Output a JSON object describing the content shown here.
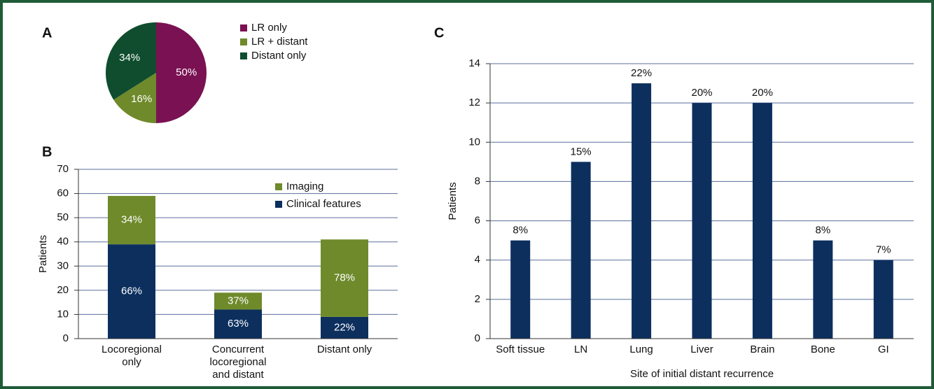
{
  "chart_data": [
    {
      "type": "pie",
      "panel": "A",
      "categories": [
        "LR only",
        "LR + distant",
        "Distant only"
      ],
      "values": [
        50,
        16,
        34
      ],
      "value_labels": [
        "50%",
        "16%",
        "34%"
      ],
      "colors": [
        "#7a1152",
        "#6f8a2b",
        "#0f4d2e"
      ]
    },
    {
      "type": "stacked_bar",
      "panel": "B",
      "categories": [
        "Locoregional\nonly",
        "Concurrent\nlocoregional\nand distant",
        "Distant only"
      ],
      "series": [
        {
          "name": "Clinical features",
          "color": "#0c2f5e",
          "values": [
            39,
            12,
            9
          ],
          "labels": [
            "66%",
            "63%",
            "22%"
          ]
        },
        {
          "name": "Imaging",
          "color": "#6f8a2b",
          "values": [
            20,
            7,
            32
          ],
          "labels": [
            "34%",
            "37%",
            "78%"
          ]
        }
      ],
      "ylabel": "Patients",
      "ylim": [
        0,
        70
      ],
      "yticks": [
        0,
        10,
        20,
        30,
        40,
        50,
        60,
        70
      ],
      "grid": true
    },
    {
      "type": "bar",
      "panel": "C",
      "categories": [
        "Soft tissue",
        "LN",
        "Lung",
        "Liver",
        "Brain",
        "Bone",
        "GI"
      ],
      "values": [
        5,
        9,
        13,
        12,
        12,
        5,
        4
      ],
      "labels": [
        "8%",
        "15%",
        "22%",
        "20%",
        "20%",
        "8%",
        "7%"
      ],
      "color": "#0c2f5e",
      "xlabel": "Site of initial distant recurrence",
      "ylabel": "Patients",
      "ylim": [
        0,
        14
      ],
      "yticks": [
        0,
        2,
        4,
        6,
        8,
        10,
        12,
        14
      ],
      "grid": true
    }
  ]
}
